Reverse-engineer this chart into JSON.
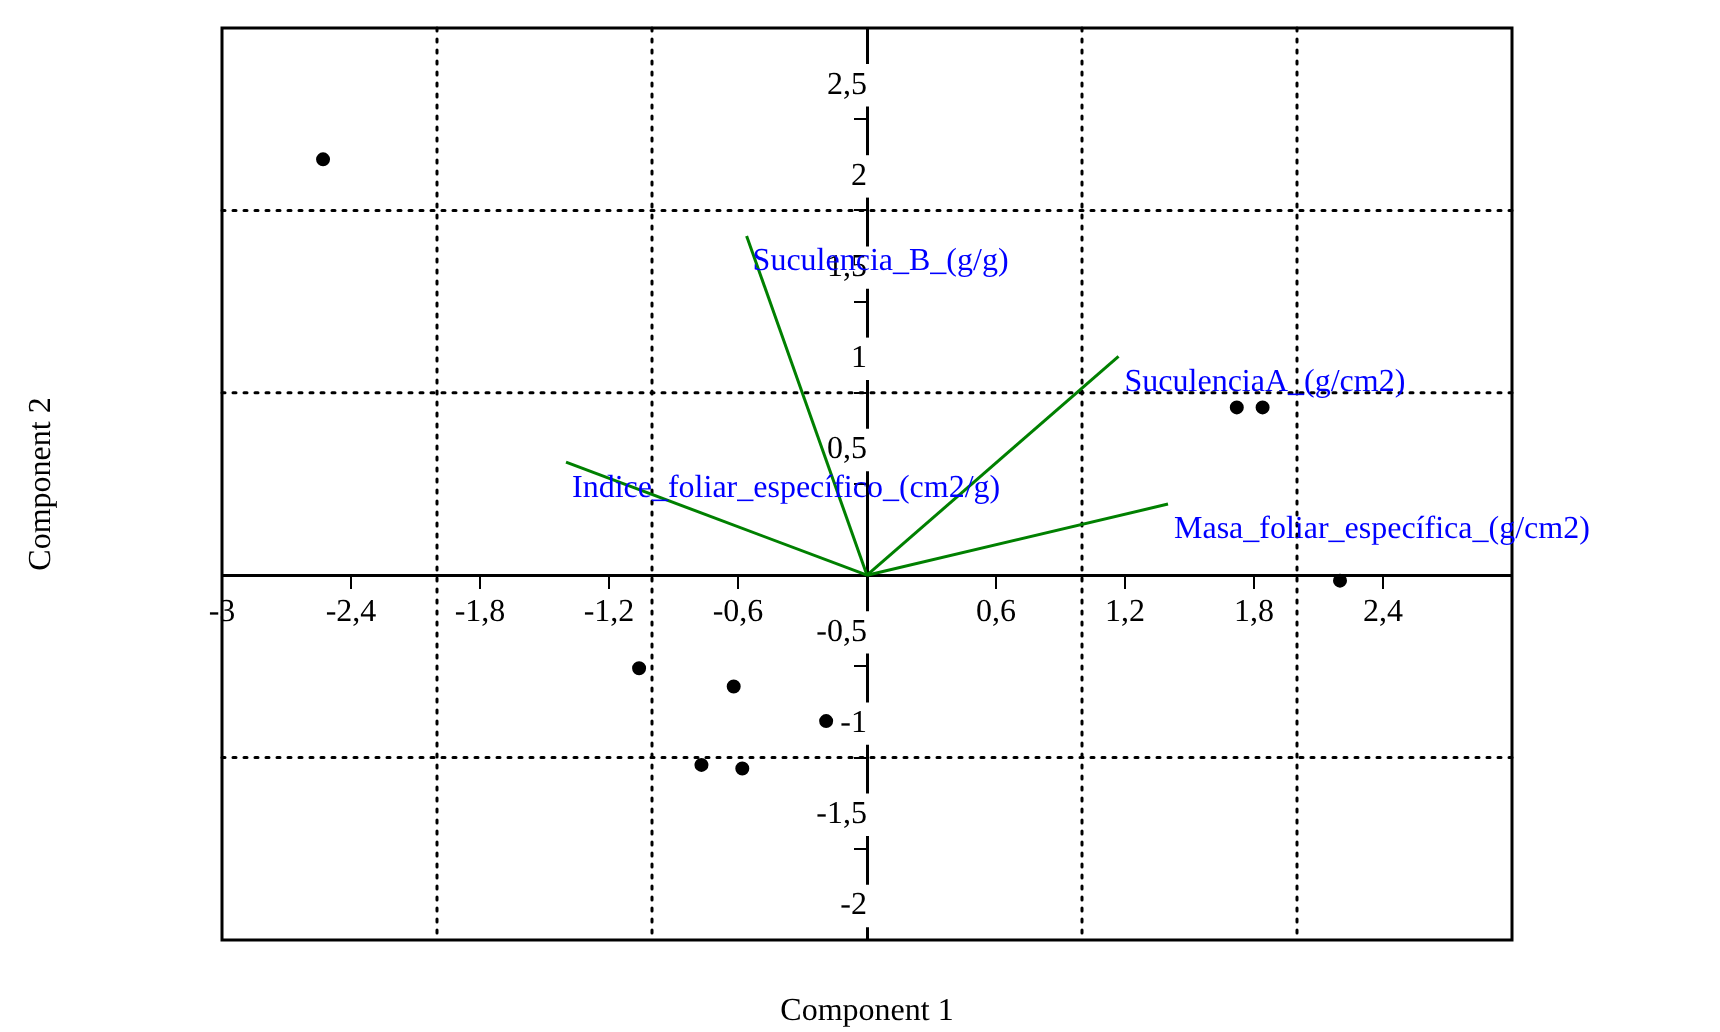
{
  "chart_data": {
    "type": "scatter",
    "xlabel": "Component 1",
    "ylabel": "Component 2",
    "xlim": [
      -3,
      3
    ],
    "ylim": [
      -2,
      3
    ],
    "xticks": [
      -3,
      {
        "value": -2.4,
        "label": "-2,4"
      },
      {
        "value": -1.8,
        "label": "-1,8"
      },
      {
        "value": -1.2,
        "label": "-1,2"
      },
      {
        "value": -0.6,
        "label": "-0,6"
      },
      {
        "value": 0.6,
        "label": "0,6"
      },
      {
        "value": 1.2,
        "label": "1,2"
      },
      {
        "value": 1.8,
        "label": "1,8"
      },
      {
        "value": 2.4,
        "label": "2,4"
      }
    ],
    "yticks": [
      -2,
      {
        "value": -1.5,
        "label": "-1,5"
      },
      -1,
      {
        "value": -0.5,
        "label": "-0,5"
      },
      {
        "value": 0.5,
        "label": "0,5"
      },
      1,
      {
        "value": 1.5,
        "label": "1,5"
      },
      2,
      {
        "value": 2.5,
        "label": "2,5"
      }
    ],
    "grid": false,
    "legend": false,
    "series": [
      {
        "color": "#000000",
        "marker": "circle",
        "x": [
          -2.53,
          1.72,
          1.84,
          2.2,
          -1.06,
          -0.62,
          -0.19,
          -0.77,
          -0.58
        ],
        "values": [
          2.28,
          0.92,
          0.92,
          -0.03,
          -0.51,
          -0.61,
          -0.8,
          -1.04,
          -1.06
        ]
      },
      {
        "type": "line",
        "color": "#008000",
        "marker": "none",
        "x": [
          0,
          -0.56
        ],
        "values": [
          0,
          1.86
        ]
      },
      {
        "type": "line",
        "color": "#008000",
        "marker": "none",
        "x": [
          0,
          1.17
        ],
        "values": [
          0,
          1.2
        ]
      },
      {
        "type": "line",
        "color": "#008000",
        "marker": "none",
        "x": [
          0,
          1.4
        ],
        "values": [
          0,
          0.39
        ]
      },
      {
        "type": "line",
        "color": "#008000",
        "marker": "none",
        "x": [
          0,
          -1.4
        ],
        "values": [
          0,
          0.62
        ]
      }
    ],
    "ref_lines": [
      {
        "axis": "x",
        "value": -2,
        "color": "#000000",
        "line_style": "dotted"
      },
      {
        "axis": "x",
        "value": -1,
        "color": "#000000",
        "line_style": "dotted"
      },
      {
        "axis": "x",
        "value": 1,
        "color": "#000000",
        "line_style": "dotted"
      },
      {
        "axis": "x",
        "value": 2,
        "color": "#000000",
        "line_style": "dotted"
      },
      {
        "axis": "y",
        "value": -1,
        "color": "#000000",
        "line_style": "dotted"
      },
      {
        "axis": "y",
        "value": 1,
        "color": "#000000",
        "line_style": "dotted"
      },
      {
        "axis": "y",
        "value": 2,
        "color": "#000000",
        "line_style": "dotted"
      }
    ],
    "annotations": [
      {
        "text": "Suculencia_B_(g/g)",
        "x": -0.56,
        "y": 1.86
      },
      {
        "text": "SuculenciaA_(g/cm2)",
        "x": 1.17,
        "y": 1.2
      },
      {
        "text": "Indice_foliar_específico_(cm2/g)",
        "x": -1.4,
        "y": 0.62
      },
      {
        "text": "Masa_foliar_específica_(g/cm2)",
        "x": 1.4,
        "y": 0.39
      }
    ]
  }
}
